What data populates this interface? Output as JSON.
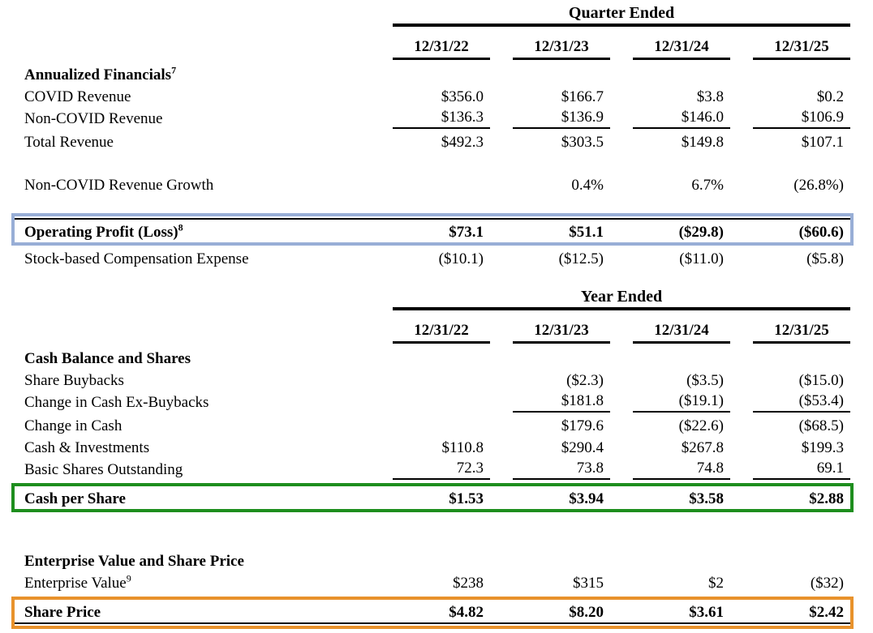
{
  "colors": {
    "operating_profit_highlight": "#98AED6",
    "cash_per_share_highlight": "#1E8E1E",
    "share_price_highlight": "#E8922C",
    "rule_color": "#000000"
  },
  "quarter": {
    "title": "Quarter Ended",
    "columns": [
      "12/31/22",
      "12/31/23",
      "12/31/24",
      "12/31/25"
    ],
    "rows": [
      {
        "label": "Annualized Financials",
        "footnote": "7",
        "values": [
          "",
          "",
          "",
          ""
        ]
      },
      {
        "label": "COVID Revenue",
        "values": [
          "$356.0",
          "$166.7",
          "$3.8",
          "$0.2"
        ]
      },
      {
        "label": "Non-COVID Revenue",
        "values": [
          "$136.3",
          "$136.9",
          "$146.0",
          "$106.9"
        ]
      },
      {
        "label": "Total Revenue",
        "values": [
          "$492.3",
          "$303.5",
          "$149.8",
          "$107.1"
        ]
      },
      {
        "label": "Non-COVID Revenue Growth",
        "values": [
          "",
          "0.4%",
          "6.7%",
          "(26.8%)"
        ]
      },
      {
        "label": "Operating Profit (Loss)",
        "footnote": "8",
        "values": [
          "$73.1",
          "$51.1",
          "($29.8)",
          "($60.6)"
        ]
      },
      {
        "label": "Stock-based Compensation Expense",
        "values": [
          "($10.1)",
          "($12.5)",
          "($11.0)",
          "($5.8)"
        ]
      }
    ]
  },
  "year": {
    "title": "Year Ended",
    "columns": [
      "12/31/22",
      "12/31/23",
      "12/31/24",
      "12/31/25"
    ],
    "rows": [
      {
        "label": "Cash Balance and Shares",
        "values": [
          "",
          "",
          "",
          ""
        ]
      },
      {
        "label": "Share Buybacks",
        "values": [
          "",
          "($2.3)",
          "($3.5)",
          "($15.0)"
        ]
      },
      {
        "label": "Change in Cash Ex-Buybacks",
        "values": [
          "",
          "$181.8",
          "($19.1)",
          "($53.4)"
        ]
      },
      {
        "label": "Change in Cash",
        "values": [
          "",
          "$179.6",
          "($22.6)",
          "($68.5)"
        ]
      },
      {
        "label": "Cash & Investments",
        "values": [
          "$110.8",
          "$290.4",
          "$267.8",
          "$199.3"
        ]
      },
      {
        "label": "Basic Shares Outstanding",
        "values": [
          "72.3",
          "73.8",
          "74.8",
          "69.1"
        ]
      },
      {
        "label": "Cash per Share",
        "values": [
          "$1.53",
          "$3.94",
          "$3.58",
          "$2.88"
        ]
      }
    ]
  },
  "enterprise": {
    "rows": [
      {
        "label": "Enterprise Value and Share Price",
        "values": [
          "",
          "",
          "",
          ""
        ]
      },
      {
        "label": "Enterprise Value",
        "footnote": "9",
        "values": [
          "$238",
          "$315",
          "$2",
          "($32)"
        ]
      },
      {
        "label": "Share Price",
        "values": [
          "$4.82",
          "$8.20",
          "$3.61",
          "$2.42"
        ]
      }
    ]
  }
}
